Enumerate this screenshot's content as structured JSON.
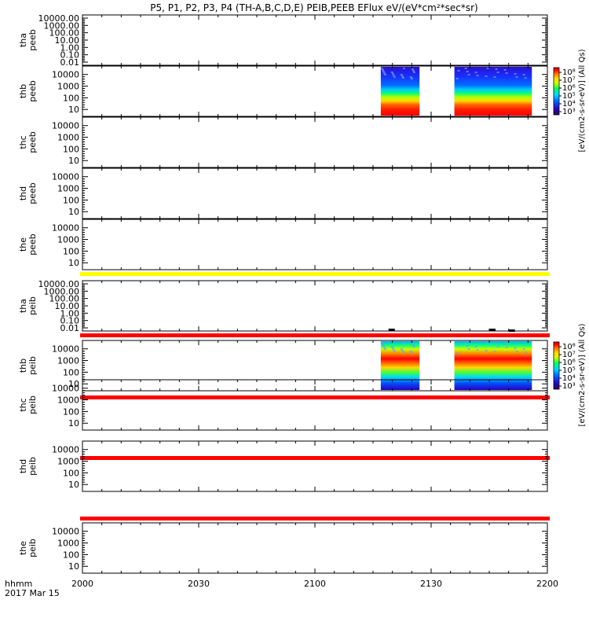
{
  "title": "P5, P1, P2, P3, P4 (TH-A,B,C,D,E) PEIB,PEEB EFlux eV/(eV*cm²*sec*sr)",
  "footer": {
    "time_label": "hhmm",
    "date_label": "2017 Mar 15"
  },
  "colorbar_label": "[eV/(cm2-s-sr-eV)] (All Qs)",
  "chart_data": {
    "type": "heatmap",
    "x_ticks": [
      "2000",
      "2030",
      "2100",
      "2130",
      "2200"
    ],
    "x_range_hhmm": [
      "2000",
      "2200"
    ],
    "panels": [
      {
        "probe": "tha",
        "species": "peeb",
        "ticks": [
          "10000.00",
          "1000.00",
          "100.00",
          "10.00",
          "1.00",
          "0.10",
          "0.01"
        ],
        "data_blocks": [],
        "status_bar": ""
      },
      {
        "probe": "thb",
        "species": "peeb",
        "ticks": [
          "10000",
          "1000",
          "100",
          "10"
        ],
        "data_blocks": [
          [
            "2117",
            "2127"
          ],
          [
            "2136",
            "2156"
          ]
        ],
        "status_bar": "",
        "colorbar": [
          "10⁸",
          "10⁷",
          "10⁶",
          "10⁵",
          "10⁴",
          "10³"
        ]
      },
      {
        "probe": "thc",
        "species": "peeb",
        "ticks": [
          "10000",
          "1000",
          "100",
          "10"
        ],
        "data_blocks": [],
        "status_bar": ""
      },
      {
        "probe": "thd",
        "species": "peeb",
        "ticks": [
          "10000",
          "1000",
          "100",
          "10"
        ],
        "data_blocks": [],
        "status_bar": ""
      },
      {
        "probe": "the",
        "species": "peeb",
        "ticks": [
          "10000",
          "1000",
          "100",
          "10"
        ],
        "data_blocks": [],
        "status_bar": "yellow"
      },
      {
        "probe": "tha",
        "species": "peib",
        "ticks": [
          "10000.00",
          "1000.00",
          "100.00",
          "10.00",
          "1.00",
          "0.10",
          "0.01"
        ],
        "data_blocks": [],
        "status_bar": "red"
      },
      {
        "probe": "thb",
        "species": "peib",
        "ticks": [
          "10000",
          "1000",
          "100",
          "10"
        ],
        "data_blocks": [
          [
            "2117",
            "2127"
          ],
          [
            "2136",
            "2156"
          ]
        ],
        "status_bar": "red",
        "colorbar": [
          "10⁸",
          "10⁷",
          "10⁶",
          "10⁵",
          "10⁴",
          "10³"
        ]
      },
      {
        "probe": "thc",
        "species": "peib",
        "ticks": [
          "10000",
          "1000",
          "100",
          "10"
        ],
        "data_blocks": [],
        "status_bar": "red"
      },
      {
        "probe": "thd",
        "species": "peib",
        "ticks": [
          "10000",
          "1000",
          "100",
          "10"
        ],
        "data_blocks": [],
        "status_bar": "red"
      },
      {
        "probe": "the",
        "species": "peib",
        "ticks": [
          "10000",
          "1000",
          "100",
          "10"
        ],
        "data_blocks": [],
        "status_bar": ""
      }
    ],
    "status_colors": {
      "yellow": "#ffff00",
      "red": "#ff0000"
    },
    "colormap": [
      "#30004a",
      "#2a00c0",
      "#0060ff",
      "#00d8ff",
      "#00ff60",
      "#c8ff00",
      "#ffe000",
      "#ff8000",
      "#ff0000",
      "#c00000"
    ]
  }
}
